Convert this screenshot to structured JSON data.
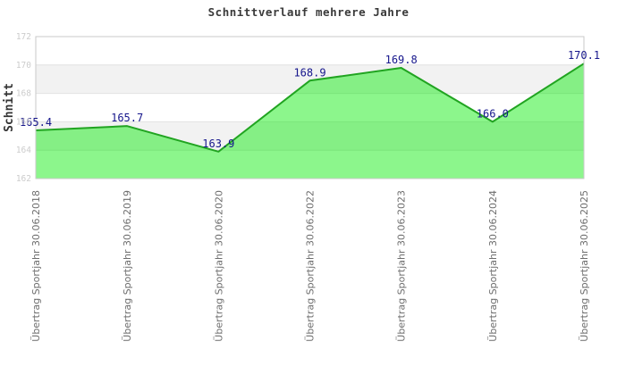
{
  "chart_data": {
    "type": "area",
    "title": "Schnittverlauf mehrere Jahre",
    "ylabel": "Schnitt",
    "xlabel": "",
    "categories": [
      "Übertrag Sportjahr 30.06.2018",
      "Übertrag Sportjahr 30.06.2019",
      "Übertrag Sportjahr 30.06.2020",
      "Übertrag Sportjahr 30.06.2022",
      "Übertrag Sportjahr 30.06.2023",
      "Übertrag Sportjahr 30.06.2024",
      "Übertrag Sportjahr 30.06.2025"
    ],
    "values": [
      165.4,
      165.7,
      163.9,
      168.9,
      169.8,
      166.0,
      170.1
    ],
    "value_labels": [
      "165.4",
      "165.7",
      "163.9",
      "168.9",
      "169.8",
      "166.0",
      "170.1"
    ],
    "ylim": [
      162,
      172
    ],
    "yticks": [
      162,
      164,
      166,
      168,
      170,
      172
    ],
    "grid": "banded",
    "legend": "none",
    "colors": {
      "line": "#21a421",
      "area_fill": "rgba(0,235,0,0.45)",
      "value_label": "#16168c",
      "band_white": "#ffffff",
      "band_gray": "#f2f2f2",
      "gridline": "#e2e2e2",
      "plot_border": "#c9c9c9",
      "ytick_label": "#cccccc",
      "xtick_label": "#6e6e6e",
      "axis_title": "#333333",
      "title": "#3a3a3a"
    }
  }
}
